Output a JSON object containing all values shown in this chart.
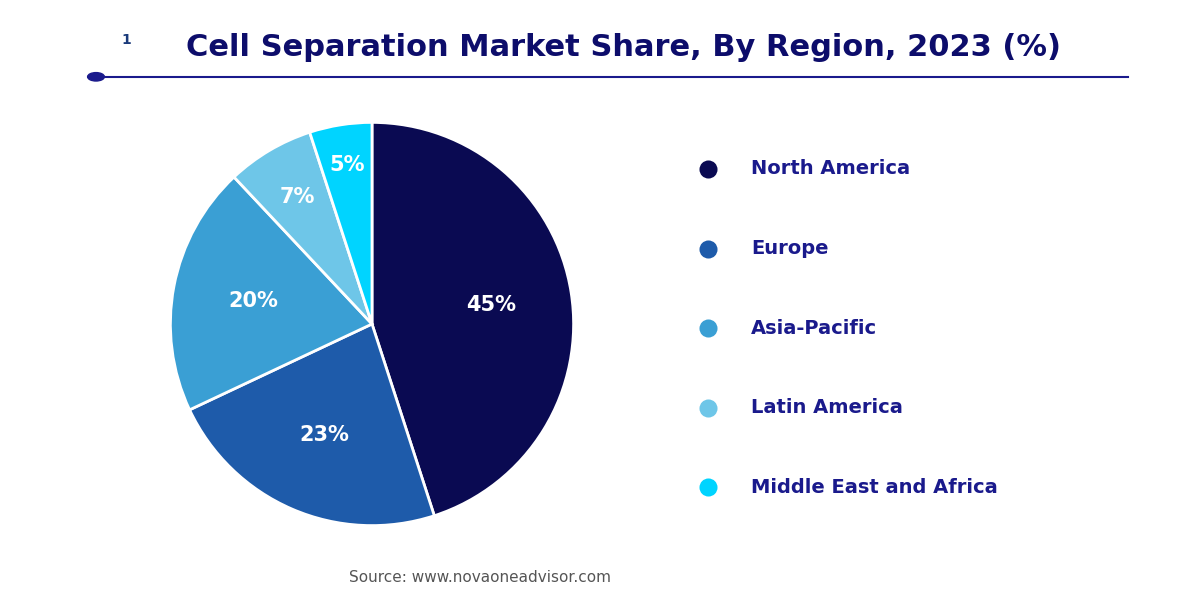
{
  "title": "Cell Separation Market Share, By Region, 2023 (%)",
  "title_color": "#0d0d6b",
  "title_fontsize": 22,
  "labels": [
    "North America",
    "Europe",
    "Asia-Pacific",
    "Latin America",
    "Middle East and Africa"
  ],
  "values": [
    45,
    23,
    20,
    7,
    5
  ],
  "colors": [
    "#0a0a52",
    "#1e5baa",
    "#3a9fd4",
    "#6ec6e8",
    "#00d4ff"
  ],
  "pct_labels": [
    "45%",
    "23%",
    "20%",
    "7%",
    "5%"
  ],
  "source_text": "Source: www.novaoneadvisor.com",
  "source_color": "#555555",
  "source_fontsize": 11,
  "legend_text_color": "#1a1a8c",
  "legend_fontsize": 14,
  "background_color": "#ffffff",
  "line_color": "#1a1a8c",
  "logo_left_color": "#1a3a7a",
  "logo_right_color": "#2a7ec8",
  "logo_one_bg": "#b8cce4"
}
